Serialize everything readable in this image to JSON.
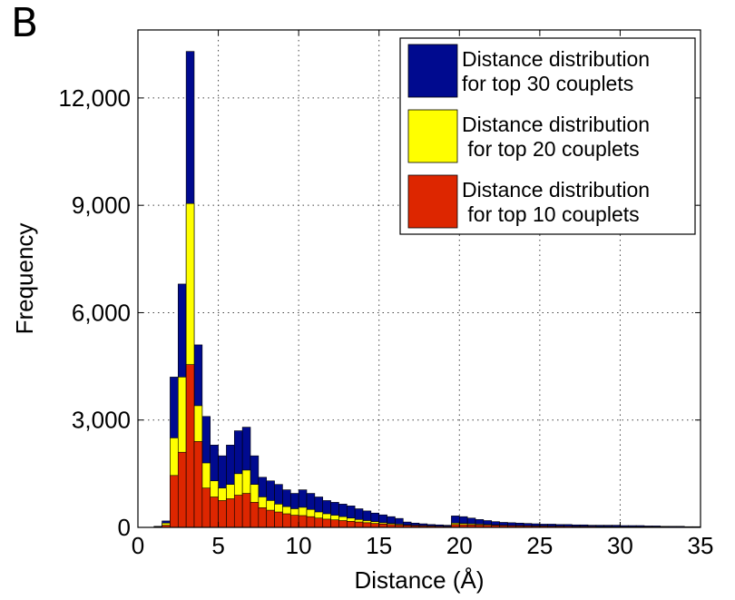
{
  "panel_label": "B",
  "chart_data": {
    "type": "bar",
    "subtype": "overlaid-histogram",
    "xlabel": "Distance  (Å)",
    "ylabel": "Frequency",
    "xlim": [
      0,
      35
    ],
    "ylim": [
      0,
      13900
    ],
    "xticks": [
      0,
      5,
      10,
      15,
      20,
      25,
      30,
      35
    ],
    "xtick_labels": [
      "0",
      "5",
      "10",
      "15",
      "20",
      "25",
      "30",
      "35"
    ],
    "yticks": [
      0,
      3000,
      6000,
      9000,
      12000
    ],
    "ytick_labels": [
      "0",
      "3,000",
      "6,000",
      "9,000",
      "12,000"
    ],
    "grid": true,
    "legend_position": "top-right",
    "bin_width": 0.5,
    "bin_start": 1.0,
    "series": [
      {
        "name": "Distance distribution for top 30 couplets",
        "legend_lines": [
          "Distance distribution",
          "for top 30 couplets"
        ],
        "color": "#000a8f",
        "values": [
          30,
          180,
          4200,
          6800,
          13300,
          5100,
          3100,
          2300,
          2000,
          2300,
          2700,
          2800,
          2000,
          1400,
          1300,
          1200,
          1050,
          950,
          1050,
          950,
          850,
          750,
          700,
          650,
          600,
          520,
          460,
          400,
          350,
          300,
          250,
          150,
          120,
          100,
          80,
          70,
          60,
          320,
          300,
          260,
          220,
          190,
          160,
          140,
          130,
          120,
          110,
          100,
          90,
          90,
          80,
          80,
          70,
          70,
          60,
          60,
          60,
          60,
          50,
          50,
          50,
          40,
          40,
          30,
          30,
          30,
          20,
          20
        ],
        "draw_order": 0
      },
      {
        "name": "Distance distribution for top 20 couplets",
        "legend_lines": [
          "Distance distribution",
          " for top 20 couplets"
        ],
        "color": "#ffff00",
        "values": [
          20,
          120,
          2500,
          4200,
          9050,
          3400,
          1800,
          1300,
          1100,
          1200,
          1500,
          1600,
          1200,
          850,
          750,
          650,
          580,
          520,
          560,
          500,
          430,
          380,
          340,
          300,
          260,
          220,
          190,
          160,
          130,
          110,
          90,
          70,
          60,
          50,
          40,
          30,
          30,
          120,
          110,
          100,
          90,
          80,
          70,
          60,
          50,
          50,
          45,
          40,
          40,
          35,
          35,
          30,
          30,
          30,
          25,
          25,
          25,
          20,
          20,
          20,
          20,
          15,
          15,
          15,
          10,
          10,
          10,
          10
        ],
        "draw_order": 1
      },
      {
        "name": "Distance distribution for top 10 couplets",
        "legend_lines": [
          "Distance distribution",
          " for top 10 couplets"
        ],
        "color": "#dd2600",
        "values": [
          10,
          60,
          1450,
          2100,
          4550,
          2400,
          1100,
          850,
          750,
          800,
          900,
          950,
          700,
          550,
          480,
          430,
          380,
          340,
          330,
          300,
          260,
          230,
          210,
          190,
          170,
          150,
          130,
          110,
          95,
          80,
          65,
          55,
          45,
          40,
          35,
          30,
          25,
          80,
          75,
          70,
          65,
          60,
          55,
          50,
          45,
          40,
          40,
          35,
          35,
          30,
          30,
          30,
          25,
          25,
          25,
          20,
          20,
          20,
          15,
          15,
          15,
          15,
          10,
          10,
          10,
          10,
          10,
          10
        ],
        "draw_order": 2
      }
    ]
  }
}
